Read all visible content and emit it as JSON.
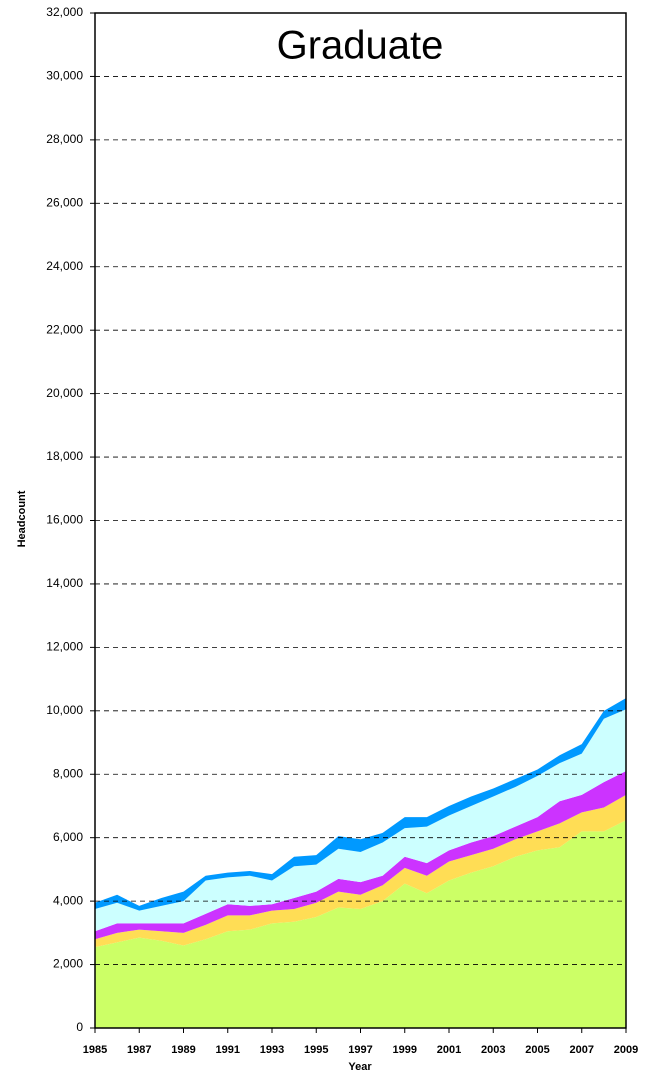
{
  "chart_data": {
    "type": "stacked_area",
    "title": "Graduate",
    "xlabel": "Year",
    "ylabel": "Headcount",
    "x": [
      1985,
      1986,
      1987,
      1988,
      1989,
      1990,
      1991,
      1992,
      1993,
      1994,
      1995,
      1996,
      1997,
      1998,
      1999,
      2000,
      2001,
      2002,
      2003,
      2004,
      2005,
      2006,
      2007,
      2008,
      2009
    ],
    "xlim": [
      1985,
      2009
    ],
    "xticks": [
      1985,
      1987,
      1989,
      1991,
      1993,
      1995,
      1997,
      1999,
      2001,
      2003,
      2005,
      2007,
      2009
    ],
    "ylim": [
      0,
      32000
    ],
    "yticks": [
      0,
      {
        "value": 2000,
        "label": "2,000"
      },
      {
        "value": 4000,
        "label": "4,000"
      },
      {
        "value": 6000,
        "label": "6,000"
      },
      {
        "value": 8000,
        "label": "8,000"
      },
      {
        "value": 10000,
        "label": "10,000"
      },
      {
        "value": 12000,
        "label": "12,000"
      },
      {
        "value": 14000,
        "label": "14,000"
      },
      {
        "value": 16000,
        "label": "16,000"
      },
      {
        "value": 18000,
        "label": "18,000"
      },
      {
        "value": 20000,
        "label": "20,000"
      },
      {
        "value": 22000,
        "label": "22,000"
      },
      {
        "value": 24000,
        "label": "24,000"
      },
      {
        "value": 26000,
        "label": "26,000"
      },
      {
        "value": 28000,
        "label": "28,000"
      },
      {
        "value": 30000,
        "label": "30,000"
      },
      {
        "value": 32000,
        "label": "32,000"
      }
    ],
    "grid": true,
    "series": [
      {
        "color": "#ccff66",
        "values": [
          2550,
          2700,
          2850,
          2750,
          2600,
          2800,
          3050,
          3100,
          3300,
          3350,
          3500,
          3800,
          3750,
          4000,
          4550,
          4250,
          4650,
          4900,
          5100,
          5400,
          5600,
          5700,
          6200,
          6200,
          6550
        ]
      },
      {
        "color": "#ffdd55",
        "values": [
          250,
          300,
          250,
          300,
          400,
          450,
          500,
          450,
          400,
          400,
          450,
          500,
          450,
          500,
          500,
          550,
          600,
          550,
          550,
          550,
          600,
          750,
          600,
          750,
          800
        ]
      },
      {
        "color": "#cc33ff",
        "values": [
          250,
          300,
          200,
          250,
          300,
          350,
          350,
          300,
          200,
          350,
          350,
          400,
          400,
          300,
          350,
          400,
          350,
          400,
          400,
          400,
          450,
          700,
          550,
          800,
          750
        ]
      },
      {
        "color": "#ccffff",
        "values": [
          700,
          650,
          400,
          550,
          700,
          1050,
          850,
          950,
          750,
          1000,
          850,
          950,
          950,
          1050,
          900,
          1150,
          1100,
          1150,
          1250,
          1250,
          1300,
          1200,
          1300,
          2000,
          1950
        ]
      },
      {
        "color": "#0099ff",
        "values": [
          200,
          250,
          150,
          250,
          300,
          150,
          150,
          150,
          200,
          300,
          300,
          400,
          400,
          300,
          350,
          300,
          300,
          300,
          250,
          250,
          200,
          250,
          300,
          250,
          350
        ]
      }
    ]
  }
}
